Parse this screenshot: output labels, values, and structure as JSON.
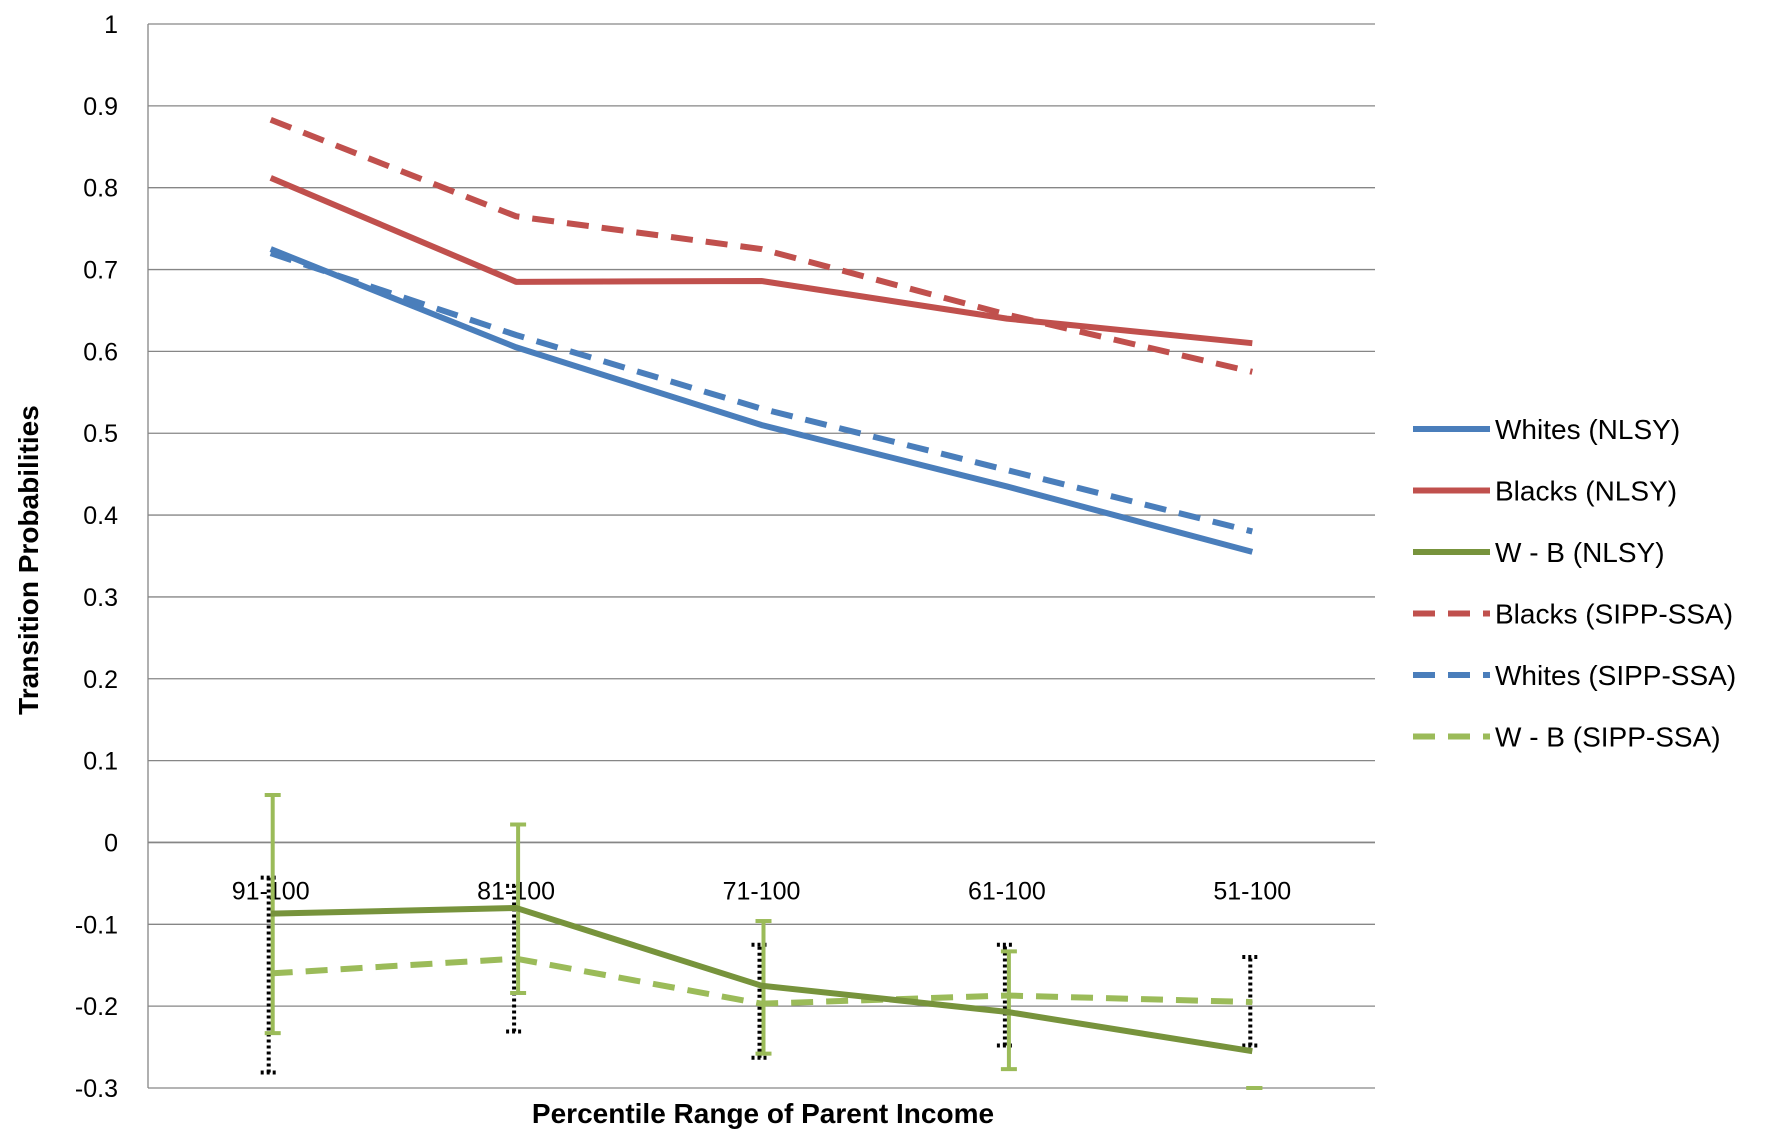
{
  "chart_data": {
    "type": "line",
    "title": "",
    "xlabel": "Percentile Range of  Parent Income",
    "ylabel": "Transition Probabilities",
    "categories": [
      "91-100",
      "81-100",
      "71-100",
      "61-100",
      "51-100"
    ],
    "ylim": [
      -0.3,
      1
    ],
    "yticks": [
      1,
      0.9,
      0.8,
      0.7,
      0.6,
      0.5,
      0.4,
      0.3,
      0.2,
      0.1,
      0,
      -0.1,
      -0.2,
      -0.3
    ],
    "grid": true,
    "legend_position": "right",
    "series": [
      {
        "name": "Whites (NLSY)",
        "values": [
          0.725,
          0.605,
          0.51,
          0.435,
          0.355
        ],
        "color": "#4A7EBB",
        "dash": "solid"
      },
      {
        "name": "Blacks (NLSY)",
        "values": [
          0.812,
          0.685,
          0.686,
          0.64,
          0.61
        ],
        "color": "#C0504D",
        "dash": "solid"
      },
      {
        "name": "W - B (NLSY)",
        "values": [
          -0.087,
          -0.08,
          -0.175,
          -0.207,
          -0.255
        ],
        "color": "#77933C",
        "dash": "solid",
        "error_low": [
          -0.233,
          -0.184,
          -0.258,
          -0.277,
          -0.3
        ],
        "error_high": [
          0.058,
          0.022,
          -0.096,
          -0.133,
          -0.3
        ]
      },
      {
        "name": "Blacks (SIPP-SSA)",
        "values": [
          0.883,
          0.765,
          0.725,
          0.645,
          0.575
        ],
        "color": "#C0504D",
        "dash": "dashed"
      },
      {
        "name": "Whites (SIPP-SSA)",
        "values": [
          0.72,
          0.62,
          0.53,
          0.455,
          0.38
        ],
        "color": "#4A7EBB",
        "dash": "dashed"
      },
      {
        "name": "W - B (SIPP-SSA)",
        "values": [
          -0.16,
          -0.142,
          -0.197,
          -0.187,
          -0.195
        ],
        "color": "#9BBB59",
        "dash": "dashed",
        "error_low": [
          -0.281,
          -0.231,
          -0.263,
          -0.248,
          -0.248
        ],
        "error_high": [
          -0.043,
          -0.053,
          -0.125,
          -0.125,
          -0.14
        ]
      }
    ]
  }
}
